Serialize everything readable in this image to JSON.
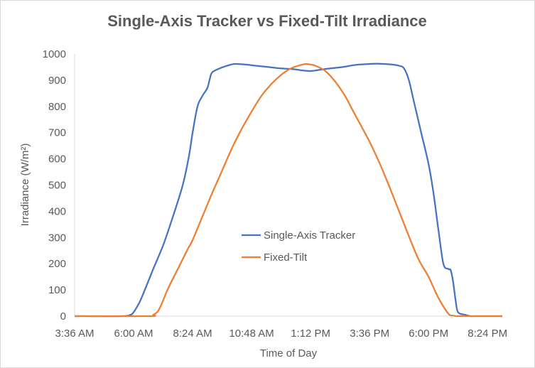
{
  "chart_data": {
    "type": "line",
    "title": "Single-Axis Tracker vs Fixed-Tilt Irradiance",
    "xlabel": "Time of Day",
    "ylabel": "Irradiance (W/m²)",
    "ylim": [
      0,
      1000
    ],
    "y_ticks": [
      0,
      100,
      200,
      300,
      400,
      500,
      600,
      700,
      800,
      900,
      1000
    ],
    "xlim": [
      "3:36 AM",
      "9:00 PM"
    ],
    "x_tick_labels": [
      "3:36 AM",
      "6:00 AM",
      "8:24 AM",
      "10:48 AM",
      "1:12 PM",
      "3:36 PM",
      "6:00 PM",
      "8:24 PM"
    ],
    "grid": false,
    "legend_placement": "center-right",
    "series": [
      {
        "name": "Single-Axis Tracker",
        "color": "#4472C4",
        "x": [
          "3:36 AM",
          "5:30 AM",
          "5:52 AM",
          "6:00 AM",
          "6:15 AM",
          "6:30 AM",
          "6:48 AM",
          "7:12 AM",
          "7:36 AM",
          "8:00 AM",
          "8:15 AM",
          "8:24 AM",
          "8:36 AM",
          "8:48 AM",
          "9:00 AM",
          "9:06 AM",
          "9:12 AM",
          "9:30 AM",
          "9:48 AM",
          "10:06 AM",
          "10:30 AM",
          "11:00 AM",
          "11:30 AM",
          "12:00 PM",
          "12:30 PM",
          "12:48 PM",
          "1:00 PM",
          "1:12 PM",
          "1:24 PM",
          "1:36 PM",
          "2:00 PM",
          "2:30 PM",
          "3:00 PM",
          "3:36 PM",
          "4:00 PM",
          "4:30 PM",
          "4:48 PM",
          "5:00 PM",
          "5:12 PM",
          "5:24 PM",
          "5:42 PM",
          "6:00 PM",
          "6:12 PM",
          "6:24 PM",
          "6:36 PM",
          "6:48 PM",
          "6:54 PM",
          "7:00 PM",
          "7:06 PM",
          "7:12 PM",
          "7:30 PM",
          "7:42 PM",
          "7:54 PM",
          "8:00 PM",
          "8:12 PM",
          "9:00 PM"
        ],
        "values": [
          0,
          0,
          5,
          15,
          55,
          110,
          180,
          270,
          380,
          500,
          610,
          700,
          800,
          840,
          870,
          905,
          930,
          945,
          955,
          962,
          960,
          955,
          950,
          945,
          942,
          938,
          936,
          935,
          937,
          940,
          945,
          950,
          958,
          962,
          963,
          960,
          955,
          945,
          900,
          820,
          700,
          580,
          470,
          330,
          200,
          180,
          175,
          130,
          60,
          15,
          5,
          0,
          0,
          0,
          0,
          0
        ]
      },
      {
        "name": "Fixed-Tilt",
        "color": "#ED7D31",
        "x": [
          "3:36 AM",
          "6:36 AM",
          "6:48 AM",
          "7:00 AM",
          "7:12 AM",
          "7:24 AM",
          "7:48 AM",
          "8:12 AM",
          "8:24 AM",
          "8:48 AM",
          "9:12 AM",
          "9:36 AM",
          "10:00 AM",
          "10:24 AM",
          "10:48 AM",
          "11:12 AM",
          "11:36 AM",
          "12:00 PM",
          "12:24 PM",
          "12:48 PM",
          "1:00 PM",
          "1:12 PM",
          "1:24 PM",
          "1:48 PM",
          "2:12 PM",
          "2:36 PM",
          "3:00 PM",
          "3:36 PM",
          "4:00 PM",
          "4:24 PM",
          "4:48 PM",
          "5:12 PM",
          "5:36 PM",
          "6:00 PM",
          "6:24 PM",
          "6:48 PM",
          "7:00 PM",
          "7:12 PM",
          "7:24 PM",
          "7:36 PM",
          "7:48 PM",
          "9:00 PM"
        ],
        "values": [
          0,
          0,
          5,
          20,
          60,
          105,
          180,
          255,
          290,
          380,
          470,
          555,
          640,
          715,
          780,
          840,
          885,
          920,
          945,
          958,
          962,
          960,
          955,
          935,
          895,
          840,
          770,
          665,
          585,
          495,
          400,
          305,
          215,
          150,
          70,
          10,
          2,
          0,
          0,
          0,
          0,
          0
        ]
      }
    ]
  }
}
